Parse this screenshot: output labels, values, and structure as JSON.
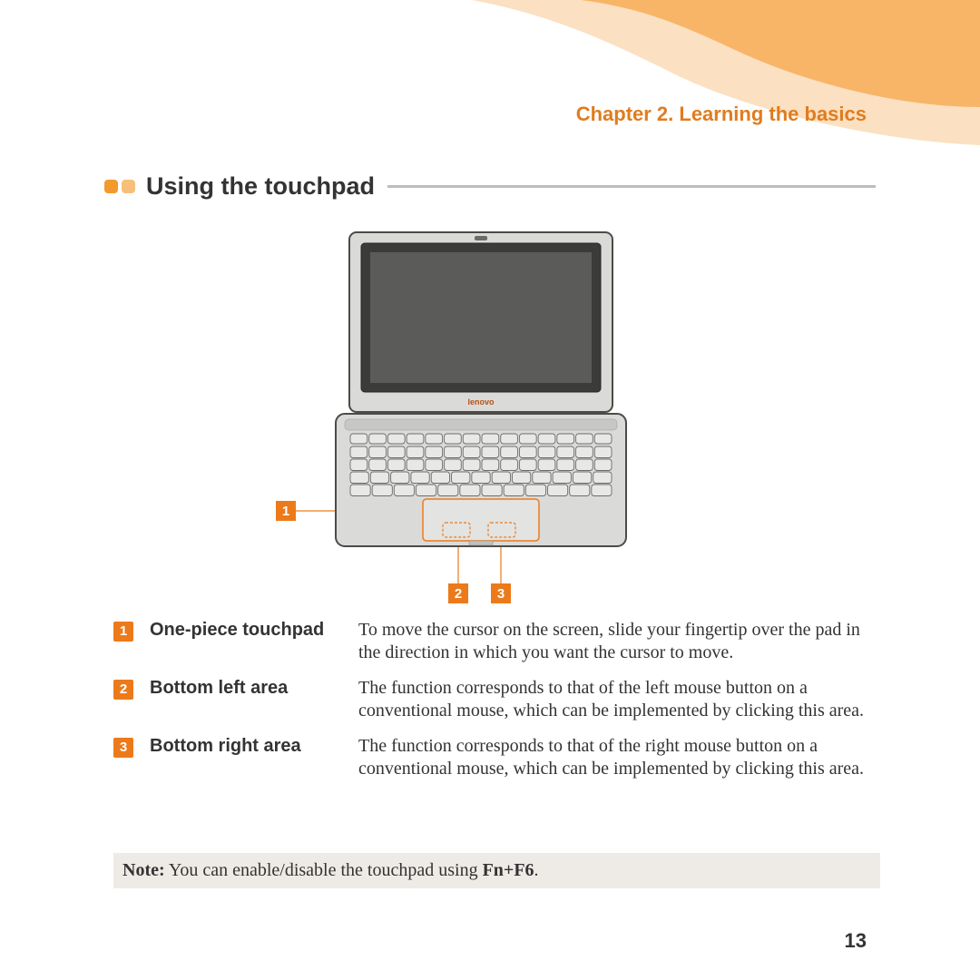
{
  "header": {
    "chapter_title": "Chapter 2. Learning the basics",
    "swoosh_outer_color": "#fbe0c2",
    "swoosh_inner_color": "#f8b567",
    "title_color": "#e07c1e"
  },
  "section": {
    "title": "Using the touchpad",
    "title_fontsize": 27,
    "bullet_colors": [
      "#f39a2c",
      "#f7c07a"
    ],
    "rule_color": "#b9bec2"
  },
  "diagram": {
    "callouts": [
      "1",
      "2",
      "3"
    ],
    "callout_bg": "#ec7a1a",
    "callout_fg": "#ffffff",
    "line_color": "#ec7a1a",
    "laptop_border": "#4d4b47",
    "laptop_fill_light": "#dadad8",
    "laptop_fill_dark": "#3b3b3a",
    "brand_text": "lenovo"
  },
  "items": [
    {
      "num": "1",
      "label": "One-piece touchpad",
      "text": "To move the cursor on the screen, slide your fingertip over the pad in the direction in which you want the cursor to move."
    },
    {
      "num": "2",
      "label": "Bottom left area",
      "text": "The function corresponds to that of the left mouse button on a conventional mouse, which can be implemented by clicking this area."
    },
    {
      "num": "3",
      "label": "Bottom right area",
      "text": "The function corresponds to that of the right mouse button on a conventional mouse, which can be implemented by clicking this area."
    }
  ],
  "note": {
    "prefix": "Note:",
    "text_before": " You can enable/disable the touchpad using ",
    "hotkey": "Fn+F6",
    "text_after": ".",
    "bg": "#eeeae6"
  },
  "page_number": "13"
}
